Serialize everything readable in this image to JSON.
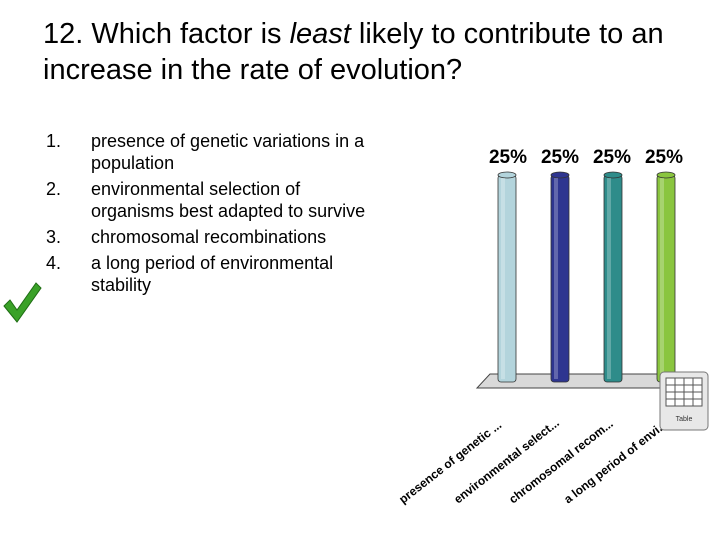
{
  "question": {
    "prefix": "12. Which factor is ",
    "emphasis": "least",
    "suffix": " likely to contribute to an increase in the rate of evolution?"
  },
  "options": [
    {
      "number": "1.",
      "text": "presence of genetic variations in a population"
    },
    {
      "number": "2.",
      "text": "environmental selection of organisms best adapted to survive"
    },
    {
      "number": "3.",
      "text": "chromosomal recombinations"
    },
    {
      "number": "4.",
      "text": "a long period of environmental stability"
    }
  ],
  "correct_answer_icon": "checkmark-icon",
  "table_icon_label": "Table",
  "chart_data": {
    "type": "bar",
    "categories": [
      "presence of genetic ...",
      "environmental select...",
      "chromosomal recom...",
      "a long period of envi..."
    ],
    "values": [
      25,
      25,
      25,
      25
    ],
    "value_labels": [
      "25%",
      "25%",
      "25%",
      "25%"
    ],
    "colors": [
      "#b3d4dc",
      "#2e3590",
      "#2e8c8a",
      "#8ac53f"
    ],
    "ylim": [
      0,
      25
    ],
    "grid": false,
    "legend": "none"
  }
}
